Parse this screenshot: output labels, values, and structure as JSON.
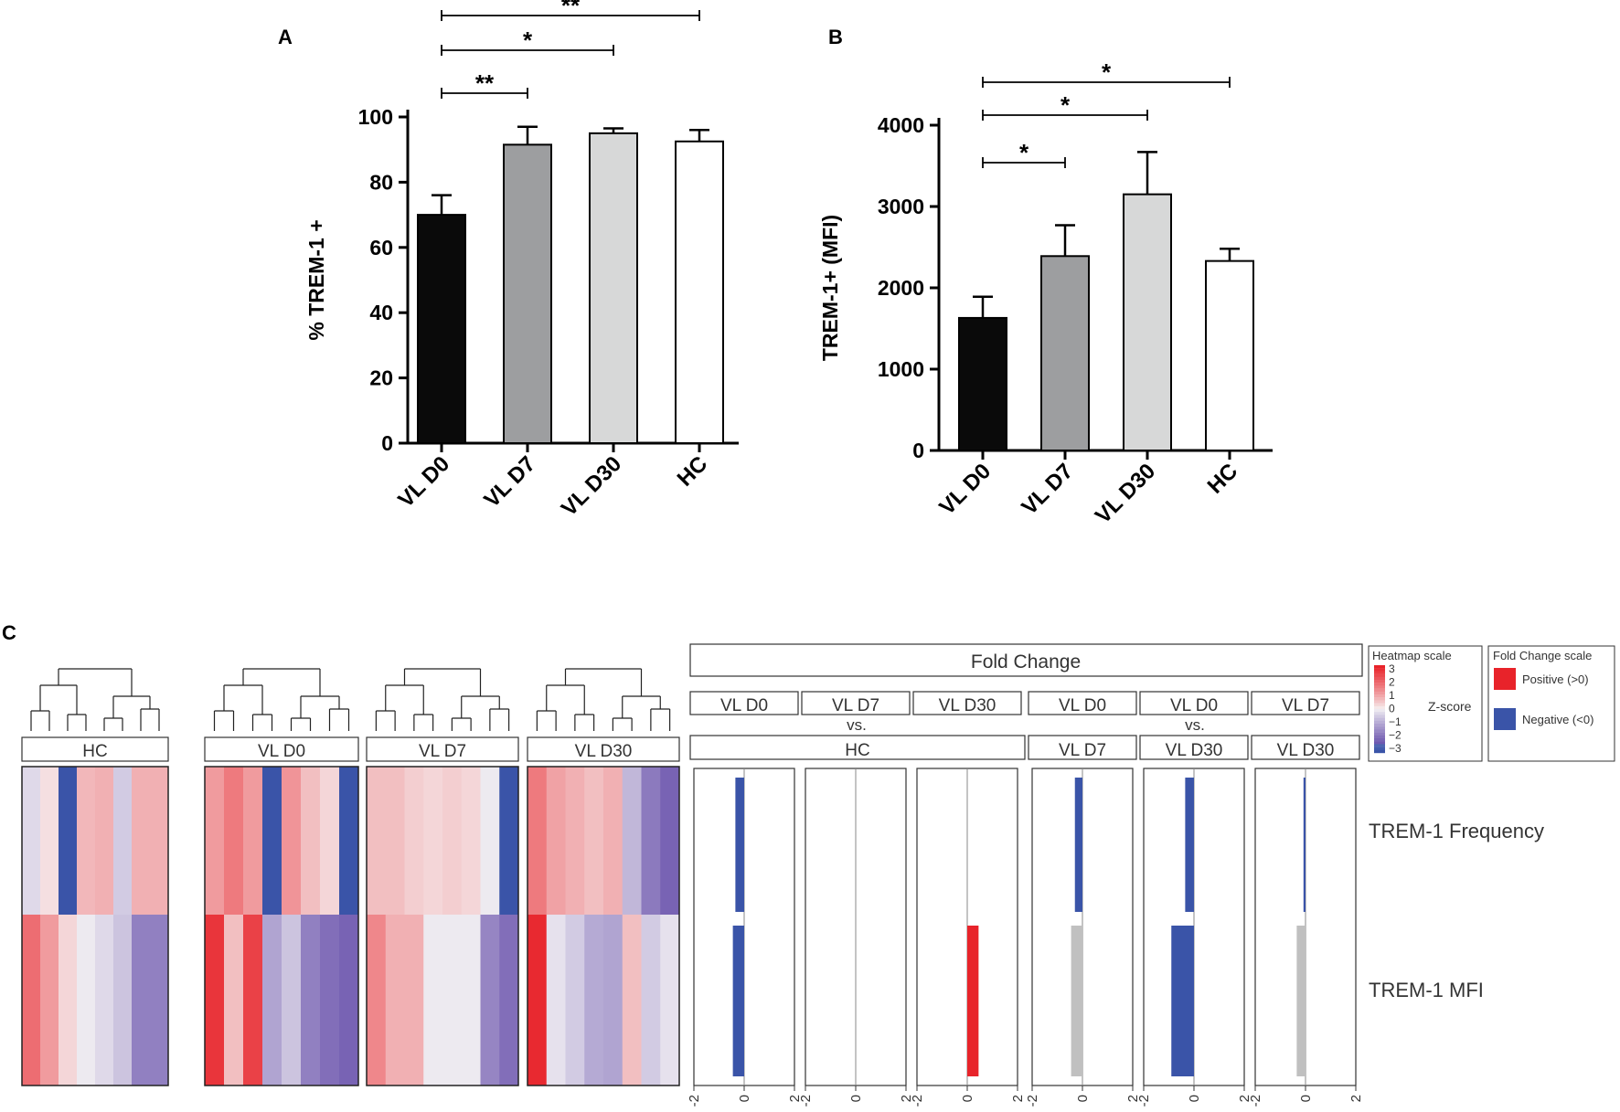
{
  "panel_a": {
    "label": "A",
    "chart_data": {
      "type": "bar",
      "categories": [
        "VL D0",
        "VL D7",
        "VL D30",
        "HC"
      ],
      "values": [
        70,
        91.5,
        95,
        92.5
      ],
      "errors": [
        6,
        5.5,
        1.5,
        3.5
      ],
      "colors": [
        "#0a0a0a",
        "#9d9ea0",
        "#d7d8d8",
        "#ffffff"
      ],
      "ylabel": "% TREM-1 +",
      "ylim": [
        0,
        100
      ],
      "yticks": [
        "0",
        "20",
        "40",
        "60",
        "80",
        "100"
      ],
      "significance": [
        {
          "from": 0,
          "to": 1,
          "label": "**"
        },
        {
          "from": 0,
          "to": 2,
          "label": "*"
        },
        {
          "from": 0,
          "to": 3,
          "label": "**"
        }
      ]
    }
  },
  "panel_b": {
    "label": "B",
    "chart_data": {
      "type": "bar",
      "categories": [
        "VL D0",
        "VL D7",
        "VL D30",
        "HC"
      ],
      "values": [
        1630,
        2390,
        3150,
        2330
      ],
      "errors": [
        260,
        380,
        520,
        150
      ],
      "colors": [
        "#0a0a0a",
        "#9d9ea0",
        "#d7d8d8",
        "#ffffff"
      ],
      "ylabel": "TREM-1+ (MFI)",
      "ylim": [
        0,
        4000
      ],
      "yticks": [
        "0",
        "1000",
        "2000",
        "3000",
        "4000"
      ],
      "significance": [
        {
          "from": 0,
          "to": 1,
          "label": "*"
        },
        {
          "from": 0,
          "to": 2,
          "label": "*"
        },
        {
          "from": 0,
          "to": 3,
          "label": "*"
        }
      ]
    }
  },
  "panel_c": {
    "label": "C",
    "heatmap": {
      "type": "heatmap",
      "groups": [
        "HC",
        "VL D0",
        "VL D7",
        "VL D30"
      ],
      "rows": [
        "TREM-1 Frequency",
        "TREM-1 MFI"
      ],
      "zscores": [
        [
          [
            -0.3,
            0.2,
            -3,
            0.7,
            0.8,
            -0.5,
            0.8,
            0.8
          ],
          [
            1.8,
            1.1,
            0.3,
            -0.1,
            -0.3,
            -0.6,
            -1.7,
            -1.7
          ]
        ],
        [
          [
            1.1,
            1.6,
            1.1,
            -3,
            1.2,
            0.6,
            0.3,
            -3
          ],
          [
            2.7,
            0.6,
            2.5,
            -1.1,
            -0.6,
            -1.7,
            -2.0,
            -2.2
          ]
        ],
        [
          [
            0.6,
            0.6,
            0.4,
            0.3,
            0.4,
            0.3,
            -0.1,
            -3
          ],
          [
            1.4,
            0.8,
            0.8,
            -0.1,
            -0.1,
            -0.1,
            -1.6,
            -2.0
          ]
        ],
        [
          [
            1.6,
            1.0,
            0.8,
            0.6,
            0.8,
            -0.8,
            -1.8,
            -2.2
          ],
          [
            2.9,
            -0.2,
            -0.5,
            -1.0,
            -1.1,
            0.6,
            -0.5,
            -0.2
          ]
        ]
      ],
      "scale_title": "Heatmap scale",
      "scale_ticks": [
        "3",
        "2",
        "1",
        "0",
        "−1",
        "−2",
        "−3"
      ],
      "scale_label": "Z-score"
    },
    "fold_change": {
      "title": "Fold Change",
      "vs_label": "vs.",
      "top_labels": [
        "VL D0",
        "VL D7",
        "VL D30",
        "VL D0",
        "VL D0",
        "VL D7"
      ],
      "bottom_labels": [
        "HC",
        "VL D7",
        "VL D30",
        "VL D30"
      ],
      "axis_ticks": [
        "-2",
        "0",
        "2"
      ],
      "xlim": [
        -2,
        2
      ],
      "values": [
        [
          -0.35,
          -0.45
        ],
        [
          0,
          0
        ],
        [
          0,
          0.45
        ],
        [
          -0.3,
          -0.45
        ],
        [
          -0.35,
          -0.9
        ],
        [
          -0.08,
          -0.35
        ]
      ],
      "row_colors": [
        [
          "#3a54a8",
          "#3a54a8"
        ],
        [
          "#3a54a8",
          "#3a54a8"
        ],
        [
          "#3a54a8",
          "#e8232a"
        ],
        [
          "#3a54a8",
          "#c0c0c0"
        ],
        [
          "#3a54a8",
          "#3a54a8"
        ],
        [
          "#3a54a8",
          "#c0c0c0"
        ]
      ],
      "legend_title": "Fold Change scale",
      "legend_positive": "Positive (>0)",
      "legend_negative": "Negative (<0)",
      "positive_color": "#e8232a",
      "negative_color": "#3a54a8"
    }
  }
}
